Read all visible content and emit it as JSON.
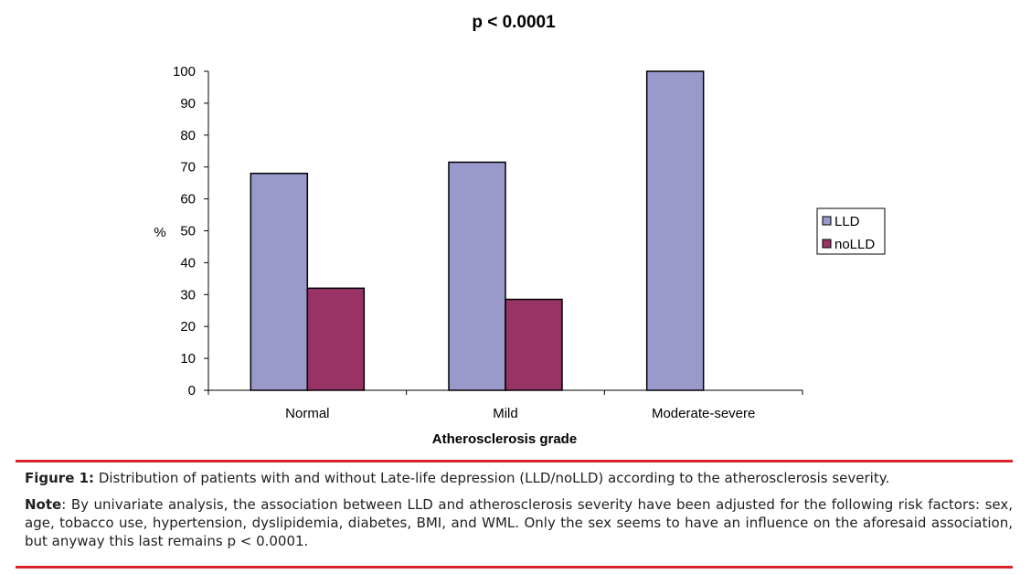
{
  "chart_data": {
    "type": "bar",
    "title": "p < 0.0001",
    "xlabel": "Atherosclerosis grade",
    "ylabel": "%",
    "ylim": [
      0,
      100
    ],
    "yticks": [
      0,
      10,
      20,
      30,
      40,
      50,
      60,
      70,
      80,
      90,
      100
    ],
    "categories": [
      "Normal",
      "Mild",
      "Moderate-severe"
    ],
    "series": [
      {
        "name": "LLD",
        "values": [
          68,
          71.5,
          100
        ],
        "color": "#9999cc"
      },
      {
        "name": "noLLD",
        "values": [
          32,
          28.5,
          0
        ],
        "color": "#993366"
      }
    ],
    "grid": false,
    "legend_position": "right"
  },
  "caption": {
    "figure_label": "Figure 1:",
    "figure_text": " Distribution of patients with and without Late-life depression (LLD/noLLD) according to the atherosclerosis severity.",
    "note_label": "Note",
    "note_text": ": By univariate analysis, the association between LLD and atherosclerosis severity have been adjusted for the following risk factors: sex, age, tobacco use, hypertension, dyslipidemia, diabetes, BMI, and WML. Only the sex seems to have an influence on the aforesaid association, but anyway this last remains p < 0.0001."
  }
}
